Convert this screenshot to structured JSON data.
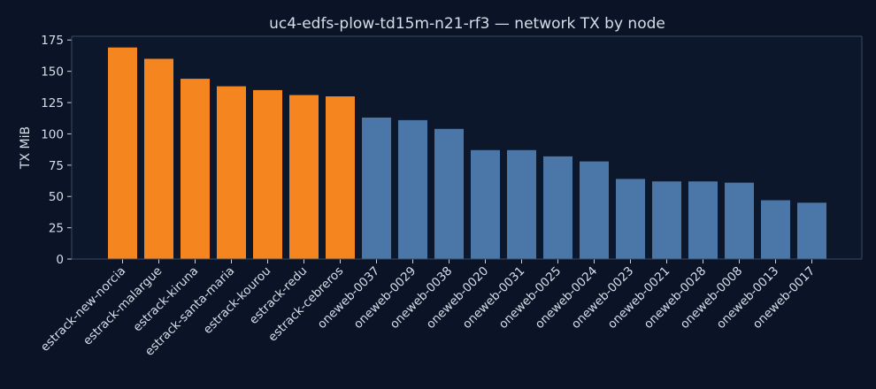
{
  "chart_data": {
    "type": "bar",
    "title": "uc4-edfs-plow-td15m-n21-rf3 — network TX by node",
    "xlabel": "",
    "ylabel": "TX MiB",
    "ylim": [
      0,
      178
    ],
    "yticks": [
      0,
      25,
      50,
      75,
      100,
      125,
      150,
      175
    ],
    "grid": false,
    "categories": [
      "estrack-new-norcia",
      "estrack-malargue",
      "estrack-kiruna",
      "estrack-santa-maria",
      "estrack-kourou",
      "estrack-redu",
      "estrack-cebreros",
      "oneweb-0037",
      "oneweb-0029",
      "oneweb-0038",
      "oneweb-0020",
      "oneweb-0031",
      "oneweb-0025",
      "oneweb-0024",
      "oneweb-0023",
      "oneweb-0021",
      "oneweb-0028",
      "oneweb-0008",
      "oneweb-0013",
      "oneweb-0017"
    ],
    "values": [
      169,
      160,
      144,
      138,
      135,
      131,
      130,
      113,
      111,
      104,
      87,
      87,
      82,
      78,
      64,
      62,
      62,
      61,
      47,
      45
    ],
    "colors": {
      "estrack": "#f5861f",
      "oneweb": "#4a76a8",
      "background": "#0b1426",
      "axes_face": "#0c172b"
    }
  }
}
